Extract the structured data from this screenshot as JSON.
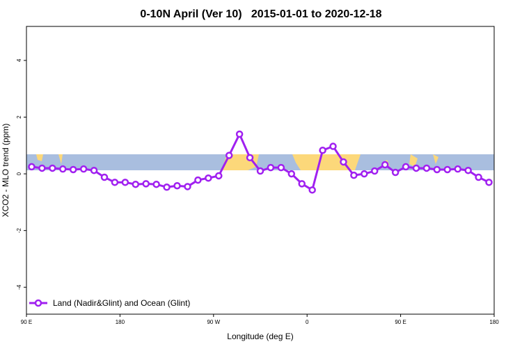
{
  "chart_data": {
    "type": "line",
    "title": "0-10N April (Ver 10)   2015-01-01 to 2020-12-18",
    "x_label": "Longitude (deg E)",
    "y_label": "XCO2 - MLO trend (ppm)",
    "x": [
      95,
      105,
      115,
      125,
      135,
      145,
      155,
      165,
      175,
      185,
      195,
      205,
      215,
      225,
      235,
      245,
      255,
      265,
      275,
      285,
      295,
      305,
      315,
      325,
      335,
      345,
      355,
      365,
      375,
      385,
      395,
      405,
      415,
      425,
      435,
      445,
      455,
      465,
      475,
      485,
      495,
      505,
      515,
      525,
      535
    ],
    "series": [
      {
        "name": "Land (Nadir&Glint) and Ocean (Glint)",
        "color": "#a020f0",
        "values": [
          0.25,
          0.2,
          0.2,
          0.17,
          0.15,
          0.17,
          0.12,
          -0.12,
          -0.3,
          -0.3,
          -0.37,
          -0.35,
          -0.37,
          -0.47,
          -0.42,
          -0.45,
          -0.22,
          -0.15,
          -0.07,
          0.65,
          1.4,
          0.57,
          0.1,
          0.22,
          0.22,
          0,
          -0.35,
          -0.57,
          0.83,
          0.97,
          0.42,
          -0.05,
          0,
          0.1,
          0.32,
          0.05,
          0.25,
          0.2,
          0.2,
          0.15,
          0.15,
          0.17,
          0.12,
          -0.12,
          -0.3
        ]
      }
    ],
    "xlim": [
      90,
      540
    ],
    "xticks": [
      {
        "value": 90,
        "label": "90 E"
      },
      180,
      {
        "value": 270,
        "label": "90 W"
      },
      {
        "value": 360,
        "label": "0"
      },
      {
        "value": 450,
        "label": "90 E"
      },
      {
        "value": 540,
        "label": "180"
      }
    ],
    "ylim": [
      -4.95,
      5.2
    ],
    "yticks": [
      -4,
      -2,
      0,
      2,
      4
    ],
    "legend_position": "bottom-left"
  }
}
